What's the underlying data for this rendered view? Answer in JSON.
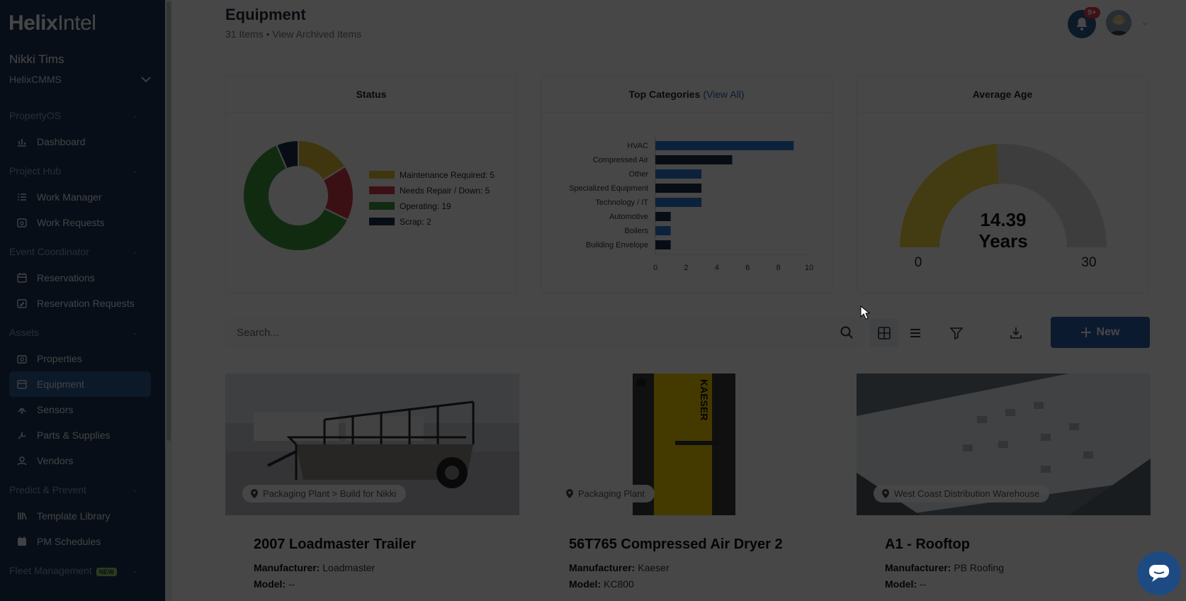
{
  "app": {
    "logo_bold": "Helix",
    "logo_light": "Intel"
  },
  "user": {
    "name": "Nikki Tims",
    "org": "HelixCMMS"
  },
  "sidebar": {
    "sections": [
      {
        "label": "PropertyOS",
        "items": [
          {
            "label": "Dashboard",
            "icon": "chart-icon"
          }
        ]
      },
      {
        "label": "Project Hub",
        "items": [
          {
            "label": "Work Manager",
            "icon": "list-icon"
          },
          {
            "label": "Work Requests",
            "icon": "inbox-icon"
          }
        ]
      },
      {
        "label": "Event Coordinator",
        "items": [
          {
            "label": "Reservations",
            "icon": "calendar-icon"
          },
          {
            "label": "Reservation Requests",
            "icon": "calendar-edit-icon"
          }
        ]
      },
      {
        "label": "Assets",
        "items": [
          {
            "label": "Properties",
            "icon": "building-icon"
          },
          {
            "label": "Equipment",
            "icon": "box-icon",
            "active": true
          },
          {
            "label": "Sensors",
            "icon": "sensor-icon"
          },
          {
            "label": "Parts & Supplies",
            "icon": "parts-icon"
          },
          {
            "label": "Vendors",
            "icon": "person-icon"
          }
        ]
      },
      {
        "label": "Predict & Prevent",
        "items": [
          {
            "label": "Template Library",
            "icon": "library-icon"
          },
          {
            "label": "PM Schedules",
            "icon": "schedule-icon"
          }
        ]
      },
      {
        "label": "Fleet Management",
        "badge": "NEW",
        "items": []
      }
    ]
  },
  "header": {
    "title": "Equipment",
    "count": "31 Items",
    "separator": " • ",
    "archived_link": "View Archived Items",
    "notifications": "9+"
  },
  "cards": {
    "status": {
      "title": "Status"
    },
    "categories": {
      "title": "Top Categories",
      "link": "(View All)"
    },
    "age": {
      "title": "Average Age",
      "value": "14.39",
      "unit": "Years",
      "min": "0",
      "max": "30"
    }
  },
  "chart_data": [
    {
      "type": "pie",
      "title": "Status",
      "labels": [
        "Maintenance Required: 5",
        "Needs Repair / Down: 5",
        "Operating: 19",
        "Scrap: 2"
      ],
      "values": [
        5,
        5,
        19,
        2
      ],
      "colors": [
        "#e3c33a",
        "#d23a4e",
        "#3e9a3e",
        "#1d2f4d"
      ]
    },
    {
      "type": "bar",
      "title": "Top Categories",
      "categories": [
        "HVAC",
        "Compressed Air",
        "Other",
        "Specialized Equipment",
        "Technology / IT",
        "Automotive",
        "Boilers",
        "Building Envelope"
      ],
      "values": [
        9,
        5,
        3,
        3,
        3,
        1,
        1,
        1
      ],
      "colors": [
        "#2b7bd6",
        "#1d2f4d",
        "#2b7bd6",
        "#1d2f4d",
        "#2b7bd6",
        "#1d2f4d",
        "#2b7bd6",
        "#1d2f4d"
      ],
      "xticks": [
        "0",
        "2",
        "4",
        "6",
        "8",
        "10"
      ],
      "xlim": [
        0,
        10
      ]
    }
  ],
  "gauge": {
    "value": 14.39,
    "min": 0,
    "max": 30,
    "fill_color": "#f0d440",
    "track_color": "#d9d9d9"
  },
  "toolbar": {
    "search_placeholder": "Search...",
    "new_label": "New"
  },
  "equipment": [
    {
      "location": "Packaging Plant > Build for Nikki",
      "name": "2007 Loadmaster Trailer",
      "manufacturer_label": "Manufacturer:",
      "manufacturer": "Loadmaster",
      "model_label": "Model:",
      "model": "--"
    },
    {
      "location": "Packaging Plant",
      "name": "56T765 Compressed Air Dryer 2",
      "manufacturer_label": "Manufacturer:",
      "manufacturer": "Kaeser",
      "model_label": "Model:",
      "model": "KC800"
    },
    {
      "location": "West Coast Distribution Warehouse",
      "name": "A1 - Rooftop",
      "manufacturer_label": "Manufacturer:",
      "manufacturer": "PB Roofing",
      "model_label": "Model:",
      "model": "--"
    }
  ],
  "image_text": {
    "kaeser": "KAESER"
  }
}
